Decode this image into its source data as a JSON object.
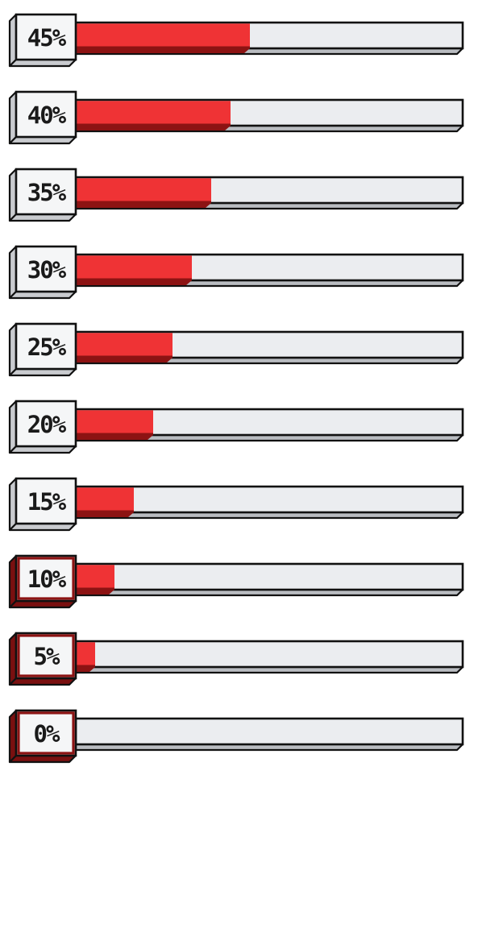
{
  "progress_bars": [
    {
      "label": "45%",
      "value": 0.45
    },
    {
      "label": "40%",
      "value": 0.4
    },
    {
      "label": "35%",
      "value": 0.35
    },
    {
      "label": "30%",
      "value": 0.3
    },
    {
      "label": "25%",
      "value": 0.25
    },
    {
      "label": "20%",
      "value": 0.2
    },
    {
      "label": "15%",
      "value": 0.15
    },
    {
      "label": "10%",
      "value": 0.1
    },
    {
      "label": "5%",
      "value": 0.05
    },
    {
      "label": "0%",
      "value": 0.0
    }
  ],
  "colors": {
    "fill": "#ef3335",
    "fill_shadow": "#8c1313",
    "track": "#ebedf0",
    "track_shadow": "#b9bcc1",
    "outline": "#111111",
    "label_box": "#f5f6f7",
    "label_side": "#c9cbcf",
    "label_side_low": "#7a1010",
    "label_border_low": "#8c1313"
  }
}
